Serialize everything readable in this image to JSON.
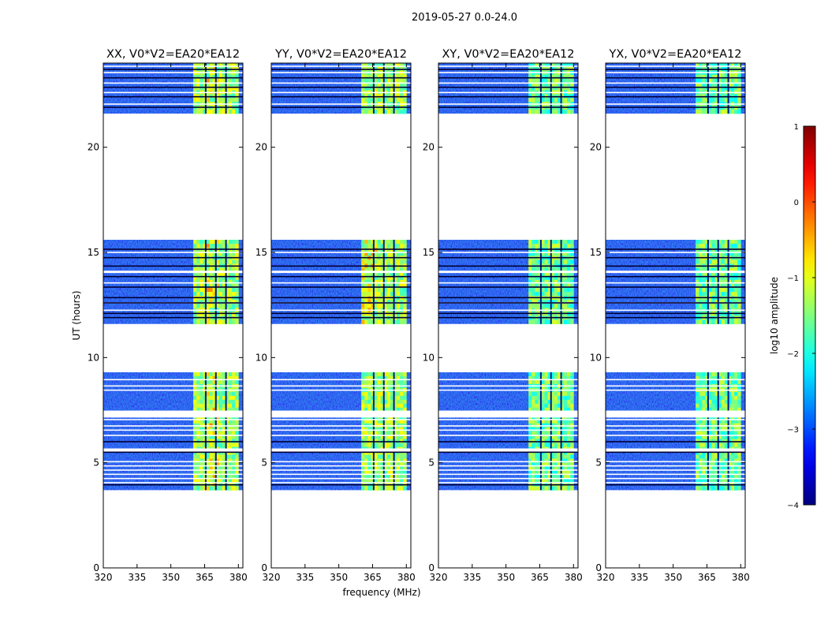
{
  "chart_data": {
    "type": "heatmap",
    "title": "2019-05-27 0.0-24.0",
    "xlabel": "frequency (MHz)",
    "ylabel": "UT (hours)",
    "xlim": [
      320,
      382
    ],
    "ylim": [
      0,
      24
    ],
    "xticks": [
      "320",
      "335",
      "350",
      "365",
      "380"
    ],
    "yticks": [
      "0",
      "5",
      "10",
      "15",
      "20"
    ],
    "panels": [
      {
        "title": "XX, V0*V2=EA20*EA12",
        "polarization": "XX"
      },
      {
        "title": "YY, V0*V2=EA20*EA12",
        "polarization": "YY"
      },
      {
        "title": "XY, V0*V2=EA20*EA12",
        "polarization": "XY"
      },
      {
        "title": "YX, V0*V2=EA20*EA12",
        "polarization": "YX"
      }
    ],
    "data_segments_ut": [
      [
        3.7,
        9.3
      ],
      [
        11.6,
        15.6
      ],
      [
        21.6,
        24.0
      ]
    ],
    "bright_band_mhz": [
      360,
      380
    ],
    "colorbar": {
      "label": "log10 amplitude",
      "range": [
        -4,
        1
      ],
      "ticks": [
        "1",
        "0",
        "−1",
        "−2",
        "−3",
        "−4"
      ],
      "colormap": "jet"
    },
    "colors": {
      "jet": [
        "#00007f",
        "#0000ff",
        "#007fff",
        "#00ffff",
        "#7fff7f",
        "#ffff00",
        "#ff7f00",
        "#ff0000",
        "#7f0000"
      ],
      "background": "#1a33e6"
    }
  }
}
